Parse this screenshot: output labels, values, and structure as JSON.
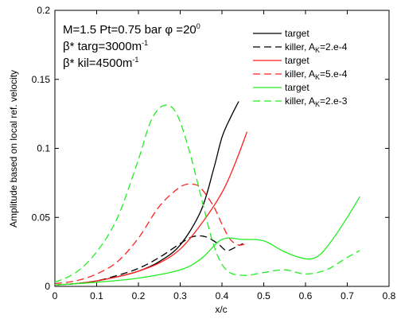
{
  "chart_data": {
    "type": "line",
    "xlabel": "x/c",
    "ylabel": "Amplitude based on local ref. velocity",
    "xlim": [
      0,
      0.8
    ],
    "ylim": [
      0,
      0.2
    ],
    "x_ticks": [
      "0",
      "0.1",
      "0.2",
      "0.3",
      "0.4",
      "0.5",
      "0.6",
      "0.7",
      "0.8"
    ],
    "y_ticks": [
      "0",
      "0.05",
      "0.1",
      "0.15",
      "0.2"
    ],
    "grid": false,
    "legend_position": "top-right",
    "annotations": {
      "line1": "M=1.5  Pt=0.75 bar φ =20",
      "line1_sup": "0",
      "line2_a": "β* targ=3000m",
      "line2_sup": "-1",
      "line3_a": "β* kil=4500m",
      "line3_sup": "-1"
    },
    "series": [
      {
        "name": "target",
        "color": "#000000",
        "dash": "solid",
        "x": [
          0,
          0.05,
          0.1,
          0.15,
          0.2,
          0.25,
          0.3,
          0.35,
          0.38,
          0.4,
          0.42,
          0.44
        ],
        "y": [
          0.001,
          0.002,
          0.004,
          0.007,
          0.011,
          0.018,
          0.03,
          0.055,
          0.085,
          0.108,
          0.122,
          0.134
        ]
      },
      {
        "name": "killer, A",
        "name_sub": "K",
        "name_tail": "=2.e-4",
        "color": "#000000",
        "dash": "dashed",
        "x": [
          0,
          0.05,
          0.1,
          0.15,
          0.2,
          0.25,
          0.3,
          0.33,
          0.36,
          0.39,
          0.41,
          0.43,
          0.45
        ],
        "y": [
          0.001,
          0.002,
          0.004,
          0.008,
          0.013,
          0.021,
          0.031,
          0.036,
          0.036,
          0.031,
          0.026,
          0.028,
          0.031
        ]
      },
      {
        "name": "target",
        "color": "#ff2020",
        "dash": "solid",
        "x": [
          0,
          0.05,
          0.1,
          0.15,
          0.2,
          0.25,
          0.3,
          0.35,
          0.4,
          0.43,
          0.46
        ],
        "y": [
          0.001,
          0.002,
          0.004,
          0.007,
          0.011,
          0.017,
          0.027,
          0.045,
          0.068,
          0.088,
          0.112
        ]
      },
      {
        "name": "killer, A",
        "name_sub": "K",
        "name_tail": "=5.e-4",
        "color": "#ff2020",
        "dash": "dashed",
        "x": [
          0,
          0.05,
          0.1,
          0.15,
          0.2,
          0.25,
          0.3,
          0.33,
          0.35,
          0.38,
          0.4,
          0.42,
          0.44,
          0.46
        ],
        "y": [
          0.002,
          0.004,
          0.009,
          0.018,
          0.035,
          0.058,
          0.072,
          0.074,
          0.071,
          0.058,
          0.045,
          0.034,
          0.03,
          0.031
        ]
      },
      {
        "name": "target",
        "color": "#22ee22",
        "dash": "solid",
        "x": [
          0,
          0.1,
          0.2,
          0.3,
          0.35,
          0.4,
          0.45,
          0.5,
          0.55,
          0.6,
          0.63,
          0.66,
          0.7,
          0.73
        ],
        "y": [
          0.001,
          0.003,
          0.006,
          0.012,
          0.02,
          0.034,
          0.034,
          0.033,
          0.025,
          0.02,
          0.022,
          0.032,
          0.05,
          0.065
        ]
      },
      {
        "name": "killer, A",
        "name_sub": "K",
        "name_tail": "=2.e-3",
        "color": "#22ee22",
        "dash": "dashed",
        "x": [
          0,
          0.05,
          0.1,
          0.15,
          0.2,
          0.23,
          0.26,
          0.29,
          0.32,
          0.35,
          0.38,
          0.41,
          0.45,
          0.5,
          0.55,
          0.6,
          0.65,
          0.7,
          0.73
        ],
        "y": [
          0.003,
          0.01,
          0.025,
          0.05,
          0.092,
          0.12,
          0.131,
          0.126,
          0.1,
          0.065,
          0.03,
          0.012,
          0.008,
          0.01,
          0.012,
          0.009,
          0.012,
          0.021,
          0.026
        ]
      }
    ]
  }
}
